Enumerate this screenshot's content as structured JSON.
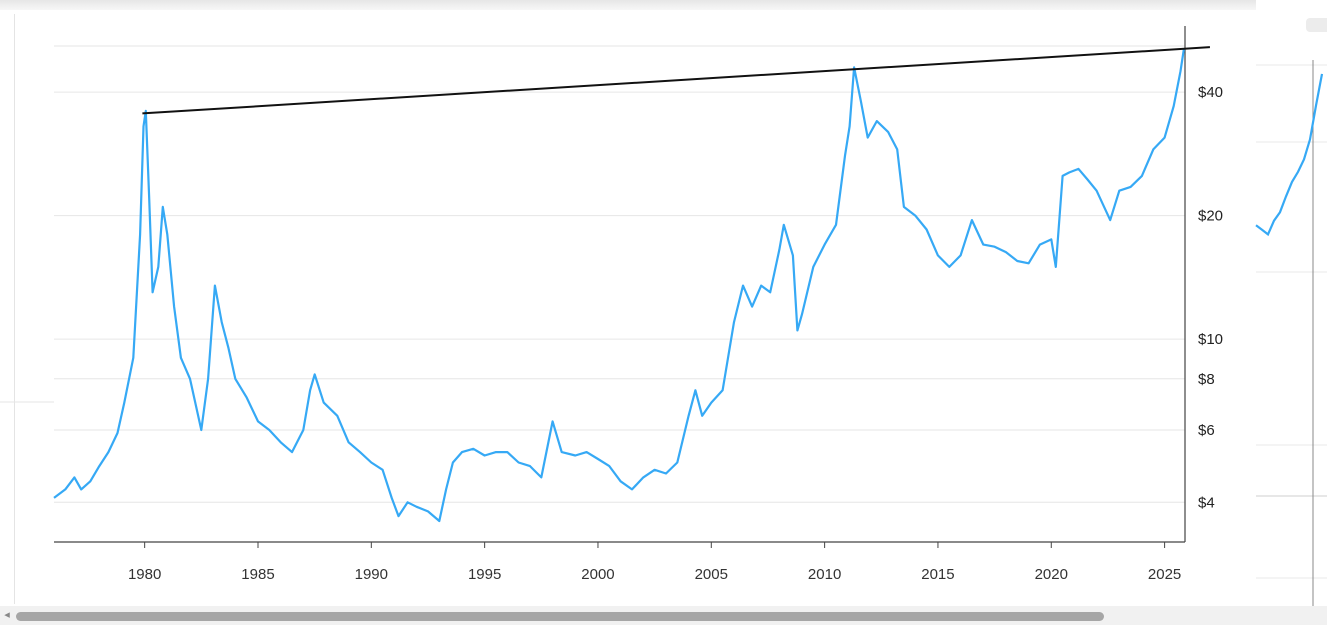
{
  "chart_data": [
    {
      "type": "line",
      "scale": "log",
      "xlim": [
        1976,
        2025.9
      ],
      "ylim": [
        3.2,
        58
      ],
      "x_ticks": [
        "1980",
        "1985",
        "1990",
        "1995",
        "2000",
        "2005",
        "2010",
        "2015",
        "2020",
        "2025"
      ],
      "y_ticks": [
        "$4",
        "$6",
        "$8",
        "$10",
        "$20",
        "$40"
      ],
      "y_tick_values": [
        4,
        6,
        8,
        10,
        20,
        40
      ],
      "grid": true,
      "series": [
        {
          "color": "#36a9f5",
          "points": [
            [
              1976.0,
              4.1
            ],
            [
              1976.5,
              4.3
            ],
            [
              1976.9,
              4.6
            ],
            [
              1977.2,
              4.3
            ],
            [
              1977.6,
              4.5
            ],
            [
              1978.0,
              4.9
            ],
            [
              1978.4,
              5.3
            ],
            [
              1978.8,
              5.9
            ],
            [
              1979.1,
              7.0
            ],
            [
              1979.5,
              9.0
            ],
            [
              1979.8,
              18.0
            ],
            [
              1979.95,
              33.0
            ],
            [
              1980.05,
              36.0
            ],
            [
              1980.2,
              22.0
            ],
            [
              1980.35,
              13.0
            ],
            [
              1980.6,
              15.0
            ],
            [
              1980.8,
              21.0
            ],
            [
              1981.0,
              18.0
            ],
            [
              1981.3,
              12.0
            ],
            [
              1981.6,
              9.0
            ],
            [
              1982.0,
              8.0
            ],
            [
              1982.5,
              6.0
            ],
            [
              1982.8,
              8.0
            ],
            [
              1983.1,
              13.5
            ],
            [
              1983.4,
              11.0
            ],
            [
              1983.7,
              9.5
            ],
            [
              1984.0,
              8.0
            ],
            [
              1984.5,
              7.2
            ],
            [
              1985.0,
              6.3
            ],
            [
              1985.5,
              6.0
            ],
            [
              1986.0,
              5.6
            ],
            [
              1986.5,
              5.3
            ],
            [
              1987.0,
              6.0
            ],
            [
              1987.3,
              7.5
            ],
            [
              1987.5,
              8.2
            ],
            [
              1987.9,
              7.0
            ],
            [
              1988.5,
              6.5
            ],
            [
              1989.0,
              5.6
            ],
            [
              1989.5,
              5.3
            ],
            [
              1990.0,
              5.0
            ],
            [
              1990.5,
              4.8
            ],
            [
              1990.9,
              4.1
            ],
            [
              1991.2,
              3.7
            ],
            [
              1991.6,
              4.0
            ],
            [
              1992.0,
              3.9
            ],
            [
              1992.5,
              3.8
            ],
            [
              1993.0,
              3.6
            ],
            [
              1993.3,
              4.3
            ],
            [
              1993.6,
              5.0
            ],
            [
              1994.0,
              5.3
            ],
            [
              1994.5,
              5.4
            ],
            [
              1995.0,
              5.2
            ],
            [
              1995.5,
              5.3
            ],
            [
              1996.0,
              5.3
            ],
            [
              1996.5,
              5.0
            ],
            [
              1997.0,
              4.9
            ],
            [
              1997.5,
              4.6
            ],
            [
              1998.0,
              6.3
            ],
            [
              1998.4,
              5.3
            ],
            [
              1999.0,
              5.2
            ],
            [
              1999.5,
              5.3
            ],
            [
              2000.0,
              5.1
            ],
            [
              2000.5,
              4.9
            ],
            [
              2001.0,
              4.5
            ],
            [
              2001.5,
              4.3
            ],
            [
              2002.0,
              4.6
            ],
            [
              2002.5,
              4.8
            ],
            [
              2003.0,
              4.7
            ],
            [
              2003.5,
              5.0
            ],
            [
              2004.0,
              6.5
            ],
            [
              2004.3,
              7.5
            ],
            [
              2004.6,
              6.5
            ],
            [
              2005.0,
              7.0
            ],
            [
              2005.5,
              7.5
            ],
            [
              2006.0,
              11.0
            ],
            [
              2006.4,
              13.5
            ],
            [
              2006.8,
              12.0
            ],
            [
              2007.2,
              13.5
            ],
            [
              2007.6,
              13.0
            ],
            [
              2008.0,
              16.5
            ],
            [
              2008.2,
              19.0
            ],
            [
              2008.6,
              16.0
            ],
            [
              2008.8,
              10.5
            ],
            [
              2009.0,
              11.5
            ],
            [
              2009.5,
              15.0
            ],
            [
              2010.0,
              17.0
            ],
            [
              2010.5,
              19.0
            ],
            [
              2010.9,
              28.0
            ],
            [
              2011.1,
              33.0
            ],
            [
              2011.3,
              46.0
            ],
            [
              2011.6,
              38.0
            ],
            [
              2011.9,
              31.0
            ],
            [
              2012.3,
              34.0
            ],
            [
              2012.8,
              32.0
            ],
            [
              2013.2,
              29.0
            ],
            [
              2013.5,
              21.0
            ],
            [
              2014.0,
              20.0
            ],
            [
              2014.5,
              18.5
            ],
            [
              2015.0,
              16.0
            ],
            [
              2015.5,
              15.0
            ],
            [
              2016.0,
              16.0
            ],
            [
              2016.5,
              19.5
            ],
            [
              2017.0,
              17.0
            ],
            [
              2017.5,
              16.8
            ],
            [
              2018.0,
              16.3
            ],
            [
              2018.5,
              15.5
            ],
            [
              2019.0,
              15.3
            ],
            [
              2019.5,
              17.0
            ],
            [
              2020.0,
              17.5
            ],
            [
              2020.2,
              15.0
            ],
            [
              2020.5,
              25.0
            ],
            [
              2020.8,
              25.5
            ],
            [
              2021.2,
              26.0
            ],
            [
              2021.6,
              24.5
            ],
            [
              2022.0,
              23.0
            ],
            [
              2022.6,
              19.5
            ],
            [
              2023.0,
              23.0
            ],
            [
              2023.5,
              23.5
            ],
            [
              2024.0,
              25.0
            ],
            [
              2024.5,
              29.0
            ],
            [
              2025.0,
              31.0
            ],
            [
              2025.4,
              37.0
            ],
            [
              2025.7,
              45.0
            ],
            [
              2025.85,
              51.0
            ]
          ]
        }
      ],
      "annotations": [
        {
          "type": "trendline",
          "color": "#111111",
          "start": [
            1979.9,
            35.5
          ],
          "end": [
            2027.0,
            51.5
          ]
        }
      ]
    },
    {
      "type": "line",
      "partial": true,
      "series": [
        {
          "color": "#36a9f5",
          "points": [
            [
              0,
              18.5
            ],
            [
              1,
              18.0
            ],
            [
              2,
              17.5
            ],
            [
              3,
              19.0
            ],
            [
              4,
              20.0
            ],
            [
              5,
              22.0
            ],
            [
              6,
              24.0
            ],
            [
              7,
              25.5
            ],
            [
              8,
              27.5
            ],
            [
              9,
              31.0
            ],
            [
              10,
              38.0
            ],
            [
              11,
              46.0
            ]
          ]
        }
      ]
    }
  ]
}
